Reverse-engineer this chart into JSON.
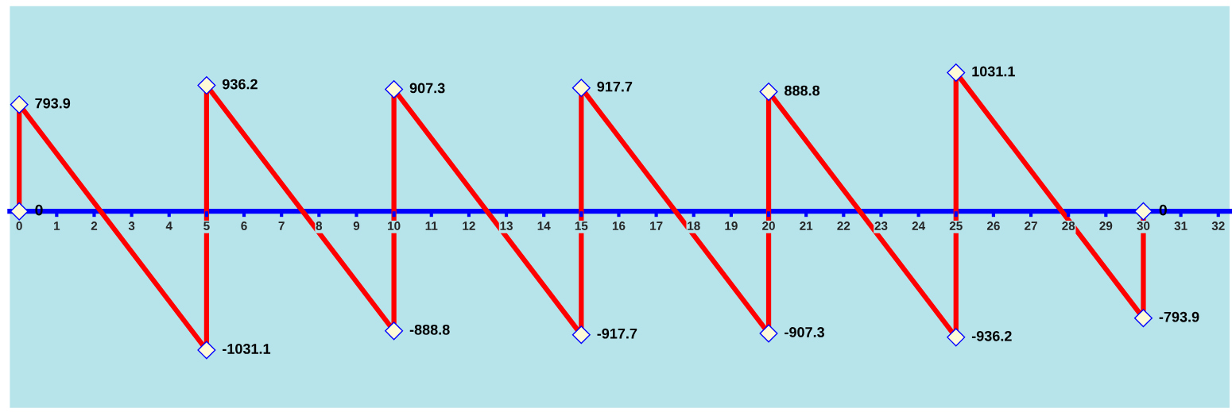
{
  "chart_data": {
    "type": "line",
    "x": [
      0,
      0,
      5,
      5,
      10,
      10,
      15,
      15,
      20,
      20,
      25,
      25,
      30,
      30
    ],
    "series": [
      {
        "color": "#ff0000",
        "values": [
          0,
          793.9,
          -1031.1,
          936.2,
          -888.8,
          907.3,
          -917.7,
          917.7,
          -907.3,
          888.8,
          -936.2,
          1031.1,
          -793.9,
          0
        ]
      }
    ],
    "data_labels": true,
    "marker": "diamond",
    "line_style": "solid",
    "xlim": [
      -0.25,
      32.3
    ],
    "xticks": [
      0,
      1,
      2,
      3,
      4,
      5,
      6,
      7,
      8,
      9,
      10,
      11,
      12,
      13,
      14,
      15,
      16,
      17,
      18,
      19,
      20,
      21,
      22,
      23,
      24,
      25,
      26,
      27,
      28,
      29,
      30,
      31,
      32
    ],
    "ylim": [
      -1461,
      1525
    ],
    "tick_labels": "x",
    "grid": false,
    "legend": false
  }
}
